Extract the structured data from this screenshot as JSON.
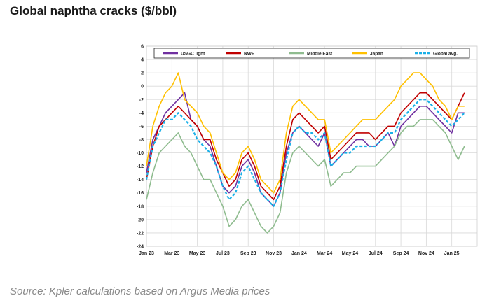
{
  "title": "Global naphtha cracks ($/bbl)",
  "source": "Source: Kpler calculations based on Argus Media prices",
  "chart_data": {
    "type": "line",
    "title": "Global naphtha cracks ($/bbl)",
    "xlabel": "",
    "ylabel": "",
    "ylim": [
      -24,
      6
    ],
    "yticks": [
      6,
      4,
      2,
      0,
      -2,
      -4,
      -6,
      -8,
      -10,
      -12,
      -14,
      -16,
      -18,
      -20,
      -22,
      -24
    ],
    "xlim": [
      0,
      26
    ],
    "xticks": [
      {
        "label": "Jan 23",
        "x": 0
      },
      {
        "label": "Mar 23",
        "x": 2
      },
      {
        "label": "May 23",
        "x": 4
      },
      {
        "label": "Jul 23",
        "x": 6
      },
      {
        "label": "Sep 23",
        "x": 8
      },
      {
        "label": "Nov 23",
        "x": 10
      },
      {
        "label": "Jan 24",
        "x": 12
      },
      {
        "label": "Mar 24",
        "x": 14
      },
      {
        "label": "May 24",
        "x": 16
      },
      {
        "label": "Jul 24",
        "x": 18
      },
      {
        "label": "Sep 24",
        "x": 20
      },
      {
        "label": "Nov 24",
        "x": 22
      },
      {
        "label": "Jan 25",
        "x": 24
      }
    ],
    "grid": true,
    "legend": "top",
    "x": [
      0,
      0.5,
      1,
      1.5,
      2,
      2.5,
      3,
      3.5,
      4,
      4.5,
      5,
      5.5,
      6,
      6.5,
      7,
      7.5,
      8,
      8.5,
      9,
      9.5,
      10,
      10.5,
      11,
      11.5,
      12,
      12.5,
      13,
      13.5,
      14,
      14.5,
      15,
      15.5,
      16,
      16.5,
      17,
      17.5,
      18,
      18.5,
      19,
      19.5,
      20,
      20.5,
      21,
      21.5,
      22,
      22.5,
      23,
      23.5,
      24,
      24.5,
      25
    ],
    "series": [
      {
        "name": "USGC light",
        "color": "#7030a0",
        "dash": false,
        "values": [
          -13,
          -8,
          -6,
          -4,
          -3,
          -2,
          -1,
          -5,
          -6,
          -8,
          -9,
          -12,
          -15,
          -16,
          -15,
          -12,
          -11,
          -13,
          -16,
          -17,
          -18,
          -16,
          -10,
          -7,
          -6,
          -7,
          -8,
          -9,
          -7,
          -12,
          -11,
          -10,
          -9,
          -8,
          -8,
          -9,
          -9,
          -8,
          -7,
          -9,
          -6,
          -5,
          -4,
          -3,
          -3,
          -4,
          -5,
          -6,
          -7,
          -4,
          -4
        ]
      },
      {
        "name": "NWE",
        "color": "#c00000",
        "dash": false,
        "values": [
          -14,
          -9,
          -6,
          -5,
          -4,
          -3,
          -4,
          -5,
          -6,
          -8,
          -8,
          -11,
          -13,
          -15,
          -14,
          -11,
          -10,
          -12,
          -15,
          -16,
          -17,
          -15,
          -9,
          -5,
          -4,
          -5,
          -6,
          -7,
          -6,
          -11,
          -10,
          -9,
          -8,
          -7,
          -7,
          -7,
          -8,
          -7,
          -6,
          -6,
          -4,
          -3,
          -2,
          -1,
          -1,
          -2,
          -3,
          -4,
          -5,
          -3,
          -1
        ]
      },
      {
        "name": "Middle East",
        "color": "#8fbc8f",
        "dash": false,
        "values": [
          -17,
          -13,
          -10,
          -9,
          -8,
          -7,
          -9,
          -10,
          -12,
          -14,
          -14,
          -16,
          -18,
          -21,
          -20,
          -18,
          -17,
          -19,
          -21,
          -22,
          -21,
          -19,
          -13,
          -10,
          -9,
          -10,
          -11,
          -12,
          -11,
          -15,
          -14,
          -13,
          -13,
          -12,
          -12,
          -12,
          -12,
          -11,
          -10,
          -9,
          -7,
          -6,
          -6,
          -5,
          -5,
          -5,
          -6,
          -7,
          -9,
          -11,
          -9
        ]
      },
      {
        "name": "Japan",
        "color": "#ffc000",
        "dash": false,
        "values": [
          -12,
          -6,
          -3,
          -1,
          0,
          2,
          -2,
          -3,
          -4,
          -6,
          -7,
          -10,
          -13,
          -14,
          -13,
          -10,
          -9,
          -11,
          -14,
          -15,
          -16,
          -14,
          -7,
          -3,
          -2,
          -3,
          -4,
          -5,
          -5,
          -10,
          -9,
          -8,
          -7,
          -6,
          -5,
          -5,
          -5,
          -4,
          -3,
          -2,
          0,
          1,
          2,
          2,
          1,
          0,
          -2,
          -3,
          -5,
          -3,
          -3
        ]
      },
      {
        "name": "Global avg.",
        "color": "#1ab0e8",
        "dash": true,
        "values": [
          -14,
          -9,
          -7,
          -5,
          -5,
          -4,
          -5,
          -6,
          -8,
          -9,
          -10,
          -12,
          -15,
          -17,
          -16,
          -13,
          -12,
          -14,
          -16,
          -17,
          -18,
          -16,
          -11,
          -7,
          -6,
          -7,
          -7,
          -8,
          -7,
          -12,
          -11,
          -10,
          -10,
          -9,
          -9,
          -9,
          -9,
          -8,
          -7,
          -7,
          -5,
          -4,
          -3,
          -2,
          -2,
          -3,
          -4,
          -5,
          -6,
          -5,
          -4
        ]
      }
    ]
  }
}
